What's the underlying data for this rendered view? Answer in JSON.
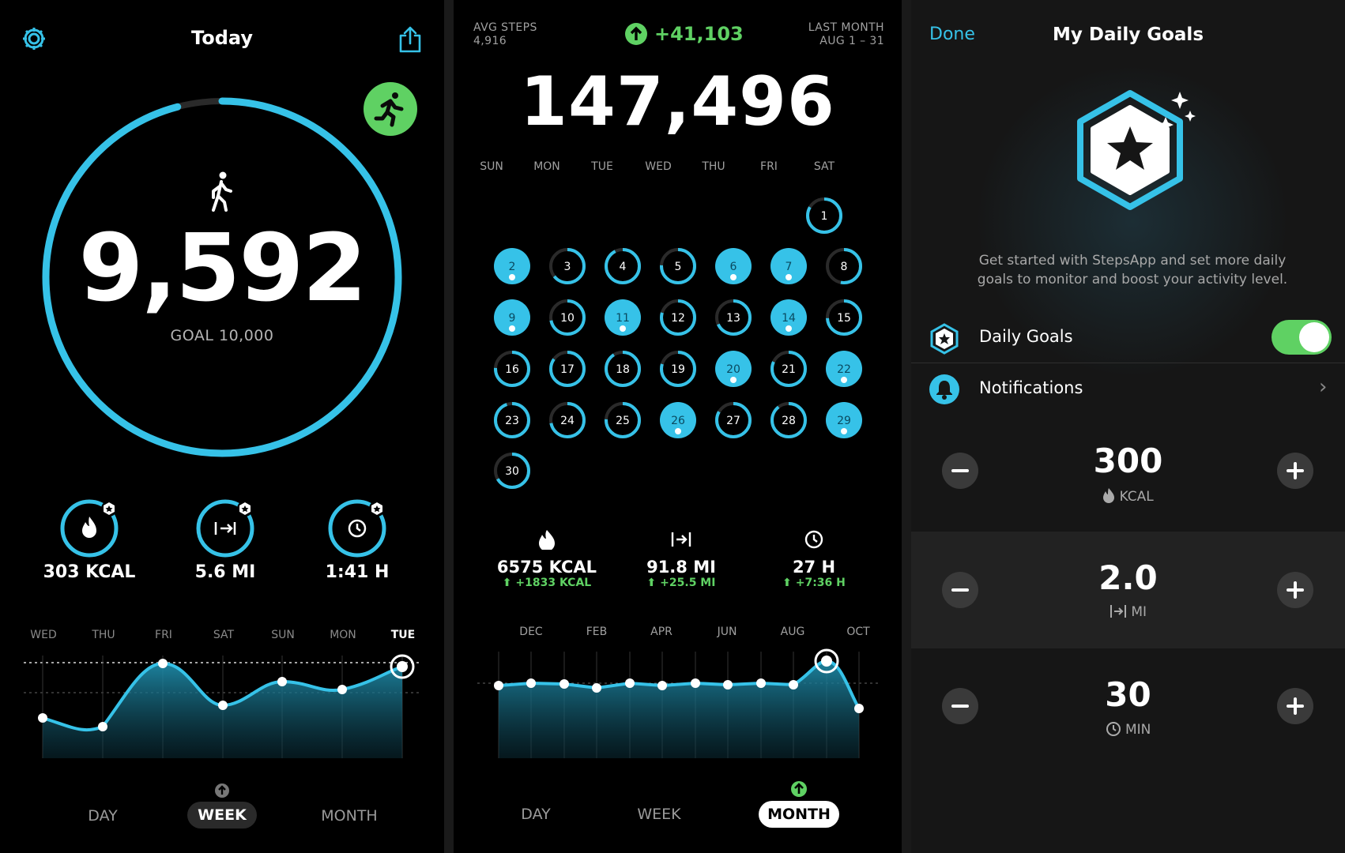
{
  "today": {
    "title": "Today",
    "steps": "9,592",
    "goal": "GOAL 10,000",
    "progress": 0.9592,
    "stats": [
      {
        "icon": "flame-icon",
        "value": "303 KCAL"
      },
      {
        "icon": "distance-icon",
        "value": "5.6 MI"
      },
      {
        "icon": "clock-icon",
        "value": "1:41 H"
      }
    ],
    "days": [
      "WED",
      "THU",
      "FRI",
      "SAT",
      "SUN",
      "MON",
      "TUE"
    ],
    "segments": [
      "DAY",
      "WEEK",
      "MONTH"
    ],
    "active_segment": "WEEK"
  },
  "month": {
    "avg_label": "AVG STEPS",
    "avg_value": "4,916",
    "delta": "+41,103",
    "period_label": "LAST MONTH",
    "period_range": "AUG 1 – 31",
    "total": "147,496",
    "weekdays": [
      "SUN",
      "MON",
      "TUE",
      "WED",
      "THU",
      "FRI",
      "SAT"
    ],
    "stats": [
      {
        "icon": "flame-icon",
        "value": "6575 KCAL",
        "delta": "+1833 KCAL"
      },
      {
        "icon": "distance-icon",
        "value": "91.8 MI",
        "delta": "+25.5 MI"
      },
      {
        "icon": "clock-icon",
        "value": "27 H",
        "delta": "+7:36 H"
      }
    ],
    "months": [
      "DEC",
      "FEB",
      "APR",
      "JUN",
      "AUG",
      "OCT"
    ],
    "segments": [
      "DAY",
      "WEEK",
      "MONTH"
    ],
    "active_segment": "MONTH"
  },
  "goals": {
    "done": "Done",
    "title": "My Daily Goals",
    "description_line1": "Get started with StepsApp and set more daily",
    "description_line2": "goals to monitor and boost your activity level.",
    "daily_goals_label": "Daily Goals",
    "daily_goals_on": true,
    "notifications_label": "Notifications",
    "items": [
      {
        "value": "300",
        "unit": "KCAL",
        "icon": "flame-icon"
      },
      {
        "value": "2.0",
        "unit": "MI",
        "icon": "distance-icon"
      },
      {
        "value": "30",
        "unit": "MIN",
        "icon": "clock-icon"
      }
    ]
  }
}
